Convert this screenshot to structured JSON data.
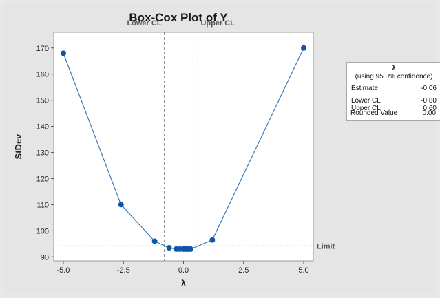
{
  "chart_data": {
    "type": "line",
    "title": "Box-Cox Plot of Y",
    "xlabel": "λ",
    "ylabel": "StDev",
    "xlim": [
      -5.4,
      5.4
    ],
    "ylim": [
      88.5,
      176
    ],
    "xticks": [
      -5.0,
      -2.5,
      0.0,
      2.5,
      5.0
    ],
    "xtick_labels": [
      "-5.0",
      "-2.5",
      "0.0",
      "2.5",
      "5.0"
    ],
    "yticks": [
      90,
      100,
      110,
      120,
      130,
      140,
      150,
      160,
      170
    ],
    "series": [
      {
        "x": [
          -5.0,
          -2.6,
          -1.2,
          -0.6,
          -0.3,
          -0.15,
          0.0,
          0.1,
          0.2,
          0.3,
          1.2,
          5.0
        ],
        "y": [
          168,
          110,
          96,
          93.5,
          93,
          93,
          93,
          93,
          93,
          93,
          96.5,
          170
        ],
        "color": "#3a78b8",
        "marker_color": "#0d56a6"
      }
    ],
    "reference_lines": {
      "lower_cl": {
        "x": -0.8,
        "label": "Lower CL"
      },
      "upper_cl": {
        "x": 0.6,
        "label": "Upper CL"
      },
      "limit": {
        "y": 94.2,
        "label": "Limit"
      }
    },
    "grid": false
  },
  "legend": {
    "title": "λ",
    "subtitle": "(using 95.0% confidence)",
    "rows": [
      {
        "label": "Estimate",
        "value": "-0.06"
      },
      {
        "label": "Lower CL",
        "value": "-0.80"
      },
      {
        "label": "Upper CL",
        "value": "0.60"
      },
      {
        "label": "Rounded Value",
        "value": "0.00"
      }
    ]
  }
}
